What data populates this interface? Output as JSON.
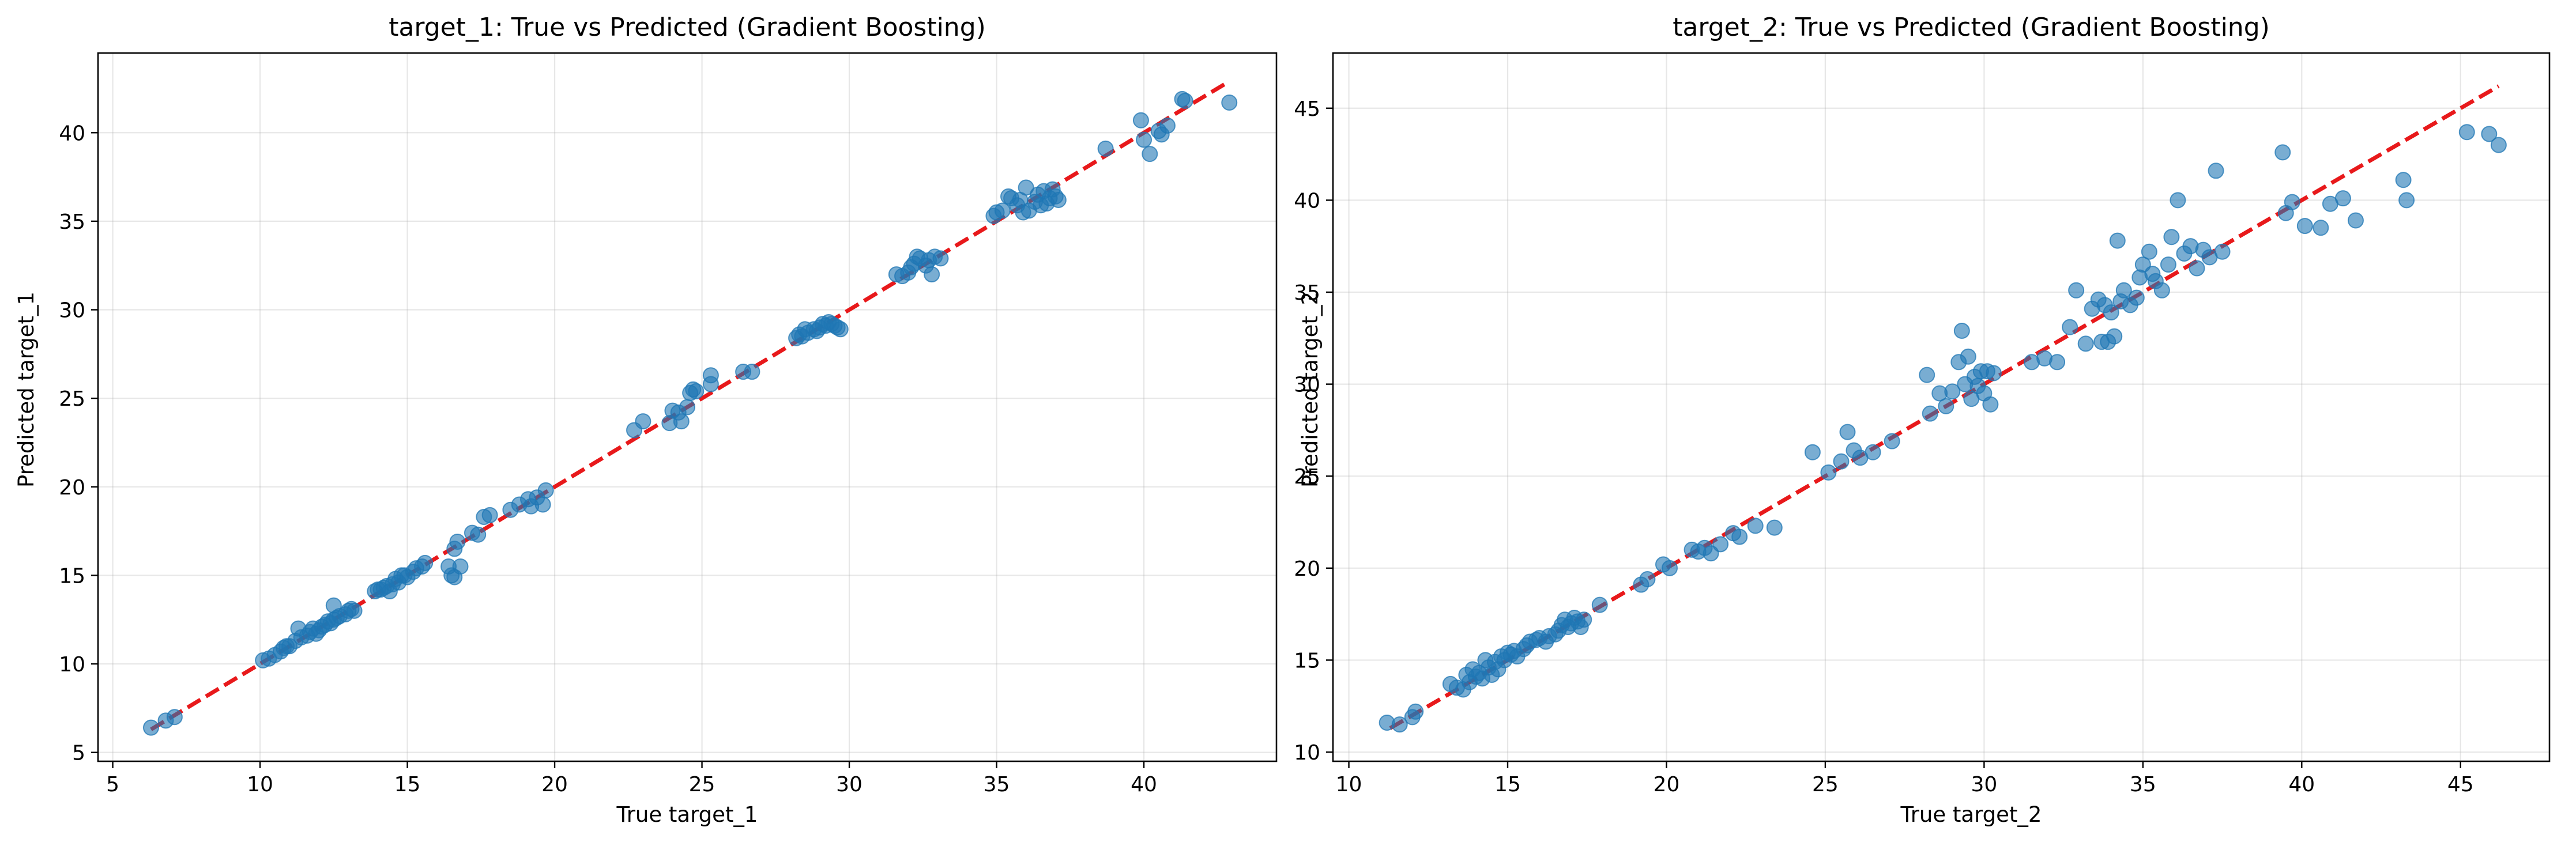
{
  "chart_data": [
    {
      "type": "scatter",
      "title": "target_1: True vs Predicted (Gradient Boosting)",
      "xlabel": "True target_1",
      "ylabel": "Predicted target_1",
      "xlim": [
        4.5,
        44.5
      ],
      "ylim": [
        4.5,
        44.5
      ],
      "xticks": [
        5,
        10,
        15,
        20,
        25,
        30,
        35,
        40
      ],
      "yticks": [
        5,
        10,
        15,
        20,
        25,
        30,
        35,
        40
      ],
      "grid": true,
      "point_color": "#1f77b4",
      "reference_line": {
        "x": [
          6.3,
          42.9
        ],
        "y": [
          6.3,
          42.9
        ],
        "color": "#e8191b",
        "style": "dashed"
      },
      "points": [
        [
          6.3,
          6.4
        ],
        [
          6.8,
          6.8
        ],
        [
          7.1,
          7.0
        ],
        [
          10.1,
          10.2
        ],
        [
          10.3,
          10.3
        ],
        [
          10.5,
          10.5
        ],
        [
          10.7,
          10.7
        ],
        [
          10.8,
          10.9
        ],
        [
          10.9,
          11.0
        ],
        [
          11.0,
          11.0
        ],
        [
          11.2,
          11.3
        ],
        [
          11.3,
          12.0
        ],
        [
          11.4,
          11.5
        ],
        [
          11.6,
          11.6
        ],
        [
          11.7,
          11.8
        ],
        [
          11.8,
          12.0
        ],
        [
          11.9,
          11.7
        ],
        [
          12.0,
          11.9
        ],
        [
          12.1,
          12.1
        ],
        [
          12.2,
          12.2
        ],
        [
          12.3,
          12.4
        ],
        [
          12.4,
          12.3
        ],
        [
          12.5,
          12.5
        ],
        [
          12.5,
          13.3
        ],
        [
          12.6,
          12.6
        ],
        [
          12.7,
          12.7
        ],
        [
          12.9,
          12.8
        ],
        [
          13.0,
          13.0
        ],
        [
          13.1,
          13.1
        ],
        [
          13.2,
          13.0
        ],
        [
          13.9,
          14.1
        ],
        [
          14.0,
          14.2
        ],
        [
          14.1,
          14.2
        ],
        [
          14.2,
          14.3
        ],
        [
          14.3,
          14.4
        ],
        [
          14.4,
          14.1
        ],
        [
          14.5,
          14.5
        ],
        [
          14.6,
          14.8
        ],
        [
          14.7,
          14.6
        ],
        [
          14.8,
          15.0
        ],
        [
          14.9,
          15.0
        ],
        [
          15.0,
          14.9
        ],
        [
          15.2,
          15.2
        ],
        [
          15.3,
          15.4
        ],
        [
          15.5,
          15.5
        ],
        [
          15.6,
          15.7
        ],
        [
          16.4,
          15.5
        ],
        [
          16.5,
          15.0
        ],
        [
          16.6,
          14.9
        ],
        [
          16.6,
          16.5
        ],
        [
          16.7,
          16.9
        ],
        [
          16.8,
          15.5
        ],
        [
          17.2,
          17.4
        ],
        [
          17.4,
          17.3
        ],
        [
          17.6,
          18.3
        ],
        [
          17.8,
          18.4
        ],
        [
          18.5,
          18.7
        ],
        [
          18.8,
          19.0
        ],
        [
          19.1,
          19.3
        ],
        [
          19.2,
          18.9
        ],
        [
          19.4,
          19.4
        ],
        [
          19.6,
          19.0
        ],
        [
          19.7,
          19.8
        ],
        [
          22.7,
          23.2
        ],
        [
          23.0,
          23.7
        ],
        [
          23.9,
          23.6
        ],
        [
          24.0,
          24.3
        ],
        [
          24.2,
          24.2
        ],
        [
          24.3,
          23.7
        ],
        [
          24.5,
          24.5
        ],
        [
          24.6,
          25.3
        ],
        [
          24.7,
          25.5
        ],
        [
          24.8,
          25.4
        ],
        [
          25.3,
          25.8
        ],
        [
          25.3,
          26.3
        ],
        [
          26.4,
          26.5
        ],
        [
          26.7,
          26.5
        ],
        [
          28.2,
          28.4
        ],
        [
          28.3,
          28.6
        ],
        [
          28.4,
          28.5
        ],
        [
          28.5,
          28.9
        ],
        [
          28.6,
          28.7
        ],
        [
          28.8,
          28.9
        ],
        [
          28.9,
          28.8
        ],
        [
          29.0,
          29.0
        ],
        [
          29.1,
          29.2
        ],
        [
          29.2,
          29.1
        ],
        [
          29.3,
          29.3
        ],
        [
          29.4,
          29.2
        ],
        [
          29.5,
          29.1
        ],
        [
          29.6,
          29.0
        ],
        [
          29.7,
          28.9
        ],
        [
          31.6,
          32.0
        ],
        [
          31.8,
          31.9
        ],
        [
          32.0,
          32.1
        ],
        [
          32.1,
          32.4
        ],
        [
          32.2,
          32.6
        ],
        [
          32.3,
          33.0
        ],
        [
          32.4,
          32.9
        ],
        [
          32.6,
          32.5
        ],
        [
          32.7,
          32.8
        ],
        [
          32.8,
          32.0
        ],
        [
          32.9,
          33.0
        ],
        [
          33.1,
          32.9
        ],
        [
          34.9,
          35.3
        ],
        [
          35.0,
          35.5
        ],
        [
          35.2,
          35.6
        ],
        [
          35.4,
          36.4
        ],
        [
          35.5,
          36.3
        ],
        [
          35.7,
          35.9
        ],
        [
          35.8,
          36.2
        ],
        [
          35.9,
          35.5
        ],
        [
          36.0,
          36.9
        ],
        [
          36.1,
          35.6
        ],
        [
          36.3,
          36.1
        ],
        [
          36.4,
          36.5
        ],
        [
          36.5,
          35.9
        ],
        [
          36.6,
          36.7
        ],
        [
          36.7,
          36.0
        ],
        [
          36.8,
          36.3
        ],
        [
          36.9,
          36.8
        ],
        [
          37.0,
          36.4
        ],
        [
          37.1,
          36.2
        ],
        [
          38.7,
          39.1
        ],
        [
          39.9,
          40.7
        ],
        [
          40.0,
          39.6
        ],
        [
          40.2,
          38.8
        ],
        [
          40.5,
          40.1
        ],
        [
          40.6,
          39.9
        ],
        [
          40.8,
          40.4
        ],
        [
          41.3,
          41.9
        ],
        [
          41.4,
          41.8
        ],
        [
          42.9,
          41.7
        ]
      ]
    },
    {
      "type": "scatter",
      "title": "target_2: True vs Predicted (Gradient Boosting)",
      "xlabel": "True target_2",
      "ylabel": "Predicted target_2",
      "xlim": [
        9.5,
        47.8
      ],
      "ylim": [
        9.5,
        48.0
      ],
      "xticks": [
        10,
        15,
        20,
        25,
        30,
        35,
        40,
        45
      ],
      "yticks": [
        10,
        15,
        20,
        25,
        30,
        35,
        40,
        45
      ],
      "grid": true,
      "point_color": "#1f77b4",
      "reference_line": {
        "x": [
          11.3,
          46.2
        ],
        "y": [
          11.3,
          46.2
        ],
        "color": "#e8191b",
        "style": "dashed"
      },
      "points": [
        [
          11.2,
          11.6
        ],
        [
          11.6,
          11.5
        ],
        [
          12.0,
          11.9
        ],
        [
          12.1,
          12.2
        ],
        [
          13.2,
          13.7
        ],
        [
          13.4,
          13.5
        ],
        [
          13.6,
          13.4
        ],
        [
          13.7,
          14.2
        ],
        [
          13.8,
          13.8
        ],
        [
          13.9,
          14.5
        ],
        [
          14.0,
          14.1
        ],
        [
          14.1,
          14.3
        ],
        [
          14.2,
          14.0
        ],
        [
          14.3,
          15.0
        ],
        [
          14.4,
          14.6
        ],
        [
          14.5,
          14.2
        ],
        [
          14.6,
          14.9
        ],
        [
          14.7,
          14.5
        ],
        [
          14.8,
          15.2
        ],
        [
          14.9,
          15.0
        ],
        [
          15.0,
          15.4
        ],
        [
          15.1,
          15.3
        ],
        [
          15.2,
          15.5
        ],
        [
          15.3,
          15.2
        ],
        [
          15.5,
          15.6
        ],
        [
          15.6,
          15.8
        ],
        [
          15.7,
          16.0
        ],
        [
          15.9,
          16.1
        ],
        [
          16.0,
          16.2
        ],
        [
          16.2,
          16.0
        ],
        [
          16.3,
          16.3
        ],
        [
          16.5,
          16.4
        ],
        [
          16.6,
          16.6
        ],
        [
          16.7,
          16.9
        ],
        [
          16.8,
          17.2
        ],
        [
          16.9,
          16.8
        ],
        [
          17.0,
          17.0
        ],
        [
          17.1,
          17.3
        ],
        [
          17.2,
          17.1
        ],
        [
          17.3,
          16.8
        ],
        [
          17.4,
          17.2
        ],
        [
          17.9,
          18.0
        ],
        [
          19.2,
          19.1
        ],
        [
          19.4,
          19.4
        ],
        [
          19.9,
          20.2
        ],
        [
          20.1,
          20.0
        ],
        [
          20.8,
          21.0
        ],
        [
          21.0,
          20.9
        ],
        [
          21.2,
          21.1
        ],
        [
          21.4,
          20.8
        ],
        [
          21.7,
          21.3
        ],
        [
          22.1,
          21.9
        ],
        [
          22.3,
          21.7
        ],
        [
          22.8,
          22.3
        ],
        [
          23.4,
          22.2
        ],
        [
          24.6,
          26.3
        ],
        [
          25.1,
          25.2
        ],
        [
          25.5,
          25.8
        ],
        [
          25.7,
          27.4
        ],
        [
          25.9,
          26.4
        ],
        [
          26.1,
          26.0
        ],
        [
          26.5,
          26.3
        ],
        [
          27.1,
          26.9
        ],
        [
          28.2,
          30.5
        ],
        [
          28.3,
          28.4
        ],
        [
          28.6,
          29.5
        ],
        [
          28.8,
          28.8
        ],
        [
          29.0,
          29.6
        ],
        [
          29.2,
          31.2
        ],
        [
          29.3,
          32.9
        ],
        [
          29.4,
          30.0
        ],
        [
          29.5,
          31.5
        ],
        [
          29.6,
          29.2
        ],
        [
          29.7,
          30.4
        ],
        [
          29.8,
          29.9
        ],
        [
          29.9,
          30.7
        ],
        [
          30.0,
          29.5
        ],
        [
          30.1,
          30.7
        ],
        [
          30.2,
          28.9
        ],
        [
          30.3,
          30.6
        ],
        [
          31.5,
          31.2
        ],
        [
          31.9,
          31.4
        ],
        [
          32.3,
          31.2
        ],
        [
          32.7,
          33.1
        ],
        [
          32.9,
          35.1
        ],
        [
          33.2,
          32.2
        ],
        [
          33.4,
          34.1
        ],
        [
          33.6,
          34.6
        ],
        [
          33.7,
          32.3
        ],
        [
          33.8,
          34.3
        ],
        [
          33.9,
          32.3
        ],
        [
          34.0,
          33.9
        ],
        [
          34.1,
          32.6
        ],
        [
          34.2,
          37.8
        ],
        [
          34.3,
          34.5
        ],
        [
          34.4,
          35.1
        ],
        [
          34.6,
          34.3
        ],
        [
          34.8,
          34.7
        ],
        [
          34.9,
          35.8
        ],
        [
          35.0,
          36.5
        ],
        [
          35.2,
          37.2
        ],
        [
          35.3,
          36.0
        ],
        [
          35.4,
          35.6
        ],
        [
          35.6,
          35.1
        ],
        [
          35.8,
          36.5
        ],
        [
          35.9,
          38.0
        ],
        [
          36.1,
          40.0
        ],
        [
          36.3,
          37.1
        ],
        [
          36.5,
          37.5
        ],
        [
          36.7,
          36.3
        ],
        [
          36.9,
          37.3
        ],
        [
          37.1,
          36.9
        ],
        [
          37.3,
          41.6
        ],
        [
          37.5,
          37.2
        ],
        [
          39.4,
          42.6
        ],
        [
          39.5,
          39.3
        ],
        [
          39.7,
          39.9
        ],
        [
          40.1,
          38.6
        ],
        [
          40.6,
          38.5
        ],
        [
          40.9,
          39.8
        ],
        [
          41.3,
          40.1
        ],
        [
          41.7,
          38.9
        ],
        [
          43.2,
          41.1
        ],
        [
          43.3,
          40.0
        ],
        [
          45.2,
          43.7
        ],
        [
          45.9,
          43.6
        ],
        [
          46.2,
          43.0
        ]
      ]
    }
  ]
}
